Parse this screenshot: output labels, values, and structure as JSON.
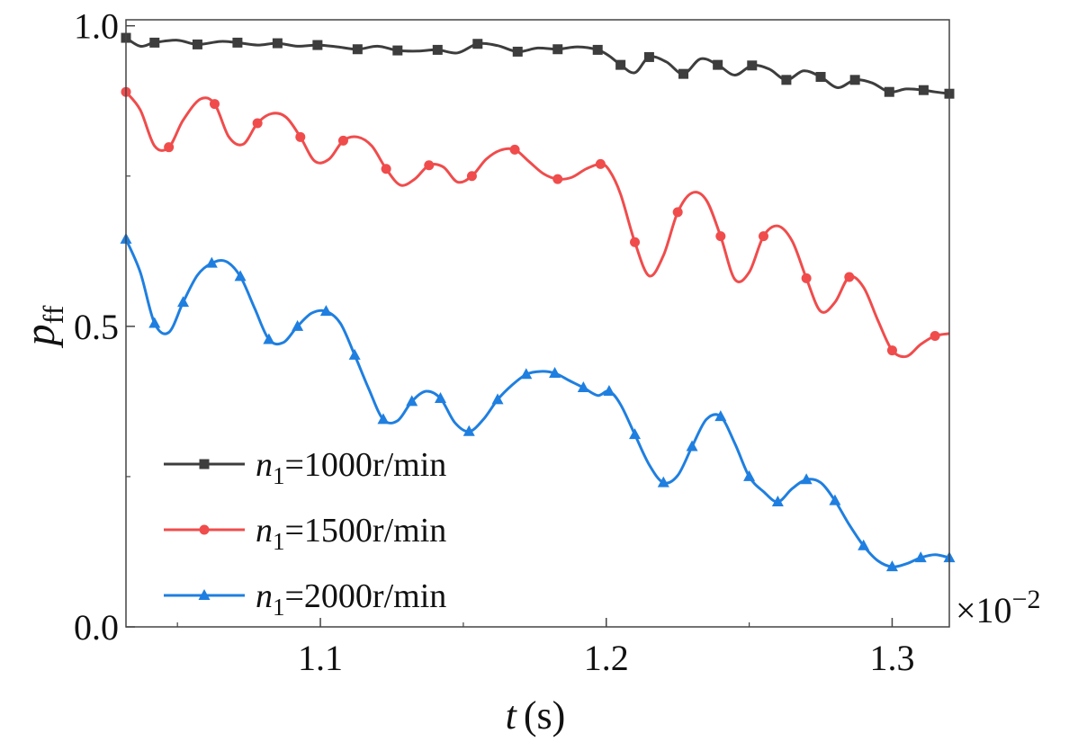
{
  "chart_data": {
    "type": "line",
    "title": "",
    "xlabel_var": "t",
    "xlabel_unit": "(s)",
    "ylabel_var": "p",
    "ylabel_sub": "ff",
    "x_multiplier_label": "×10",
    "x_multiplier_exp": "−2",
    "xlim": [
      1.032,
      1.32
    ],
    "ylim": [
      0.0,
      1.01
    ],
    "x_ticks": [
      1.1,
      1.2,
      1.3
    ],
    "x_tick_labels": [
      "1.1",
      "1.2",
      "1.3"
    ],
    "y_ticks": [
      0.0,
      0.5,
      1.0
    ],
    "y_tick_labels": [
      "0.0",
      "0.5",
      "1.0"
    ],
    "legend_position": "bottom-left",
    "series": [
      {
        "name_var": "n",
        "name_sub": "1",
        "name_rest": "=1000r/min",
        "color": "#3d3d3d",
        "marker": "square",
        "x": [
          1.032,
          1.037,
          1.042,
          1.05,
          1.057,
          1.065,
          1.071,
          1.078,
          1.085,
          1.092,
          1.099,
          1.106,
          1.113,
          1.12,
          1.127,
          1.134,
          1.141,
          1.148,
          1.155,
          1.162,
          1.169,
          1.176,
          1.183,
          1.19,
          1.197,
          1.201,
          1.205,
          1.21,
          1.215,
          1.221,
          1.227,
          1.233,
          1.239,
          1.245,
          1.251,
          1.257,
          1.263,
          1.269,
          1.275,
          1.281,
          1.287,
          1.293,
          1.299,
          1.305,
          1.311,
          1.315,
          1.32
        ],
        "values": [
          0.98,
          0.966,
          0.972,
          0.976,
          0.969,
          0.974,
          0.972,
          0.968,
          0.971,
          0.966,
          0.968,
          0.965,
          0.961,
          0.966,
          0.959,
          0.958,
          0.96,
          0.955,
          0.97,
          0.967,
          0.957,
          0.963,
          0.961,
          0.965,
          0.96,
          0.95,
          0.935,
          0.922,
          0.948,
          0.94,
          0.92,
          0.945,
          0.935,
          0.918,
          0.934,
          0.928,
          0.91,
          0.925,
          0.915,
          0.897,
          0.91,
          0.905,
          0.89,
          0.895,
          0.893,
          0.89,
          0.887
        ]
      },
      {
        "name_var": "n",
        "name_sub": "1",
        "name_rest": "=1500r/min",
        "color": "#f04c4c",
        "marker": "circle",
        "x": [
          1.032,
          1.037,
          1.042,
          1.047,
          1.052,
          1.058,
          1.063,
          1.068,
          1.073,
          1.078,
          1.083,
          1.088,
          1.093,
          1.098,
          1.103,
          1.108,
          1.113,
          1.118,
          1.123,
          1.128,
          1.133,
          1.138,
          1.143,
          1.148,
          1.153,
          1.158,
          1.163,
          1.168,
          1.173,
          1.178,
          1.183,
          1.188,
          1.193,
          1.198,
          1.201,
          1.205,
          1.21,
          1.215,
          1.22,
          1.225,
          1.23,
          1.235,
          1.24,
          1.245,
          1.25,
          1.255,
          1.26,
          1.265,
          1.27,
          1.275,
          1.28,
          1.285,
          1.29,
          1.295,
          1.3,
          1.305,
          1.31,
          1.315,
          1.32
        ],
        "values": [
          0.89,
          0.86,
          0.8,
          0.798,
          0.843,
          0.878,
          0.87,
          0.815,
          0.803,
          0.838,
          0.854,
          0.848,
          0.815,
          0.775,
          0.778,
          0.809,
          0.815,
          0.8,
          0.762,
          0.735,
          0.745,
          0.768,
          0.765,
          0.74,
          0.75,
          0.778,
          0.793,
          0.794,
          0.774,
          0.754,
          0.745,
          0.748,
          0.762,
          0.77,
          0.76,
          0.72,
          0.64,
          0.584,
          0.618,
          0.69,
          0.722,
          0.71,
          0.65,
          0.578,
          0.59,
          0.65,
          0.667,
          0.642,
          0.58,
          0.525,
          0.54,
          0.582,
          0.565,
          0.51,
          0.46,
          0.45,
          0.47,
          0.484,
          0.488
        ]
      },
      {
        "name_var": "n",
        "name_sub": "1",
        "name_rest": "=2000r/min",
        "color": "#1f7fe0",
        "marker": "triangle",
        "x": [
          1.032,
          1.037,
          1.042,
          1.047,
          1.052,
          1.057,
          1.062,
          1.067,
          1.072,
          1.077,
          1.082,
          1.087,
          1.092,
          1.097,
          1.102,
          1.107,
          1.112,
          1.117,
          1.122,
          1.127,
          1.132,
          1.137,
          1.142,
          1.147,
          1.152,
          1.157,
          1.162,
          1.167,
          1.172,
          1.177,
          1.182,
          1.187,
          1.192,
          1.197,
          1.201,
          1.205,
          1.21,
          1.215,
          1.22,
          1.225,
          1.23,
          1.235,
          1.24,
          1.245,
          1.25,
          1.255,
          1.26,
          1.265,
          1.27,
          1.275,
          1.28,
          1.285,
          1.29,
          1.295,
          1.3,
          1.305,
          1.31,
          1.315,
          1.32
        ],
        "values": [
          0.645,
          0.59,
          0.505,
          0.49,
          0.54,
          0.585,
          0.605,
          0.608,
          0.583,
          0.53,
          0.478,
          0.473,
          0.5,
          0.522,
          0.525,
          0.505,
          0.452,
          0.395,
          0.345,
          0.343,
          0.375,
          0.392,
          0.38,
          0.34,
          0.325,
          0.345,
          0.378,
          0.402,
          0.42,
          0.425,
          0.422,
          0.41,
          0.398,
          0.385,
          0.392,
          0.37,
          0.32,
          0.27,
          0.24,
          0.252,
          0.3,
          0.345,
          0.35,
          0.305,
          0.25,
          0.225,
          0.208,
          0.23,
          0.245,
          0.24,
          0.21,
          0.17,
          0.135,
          0.11,
          0.1,
          0.105,
          0.115,
          0.12,
          0.115
        ]
      }
    ]
  }
}
